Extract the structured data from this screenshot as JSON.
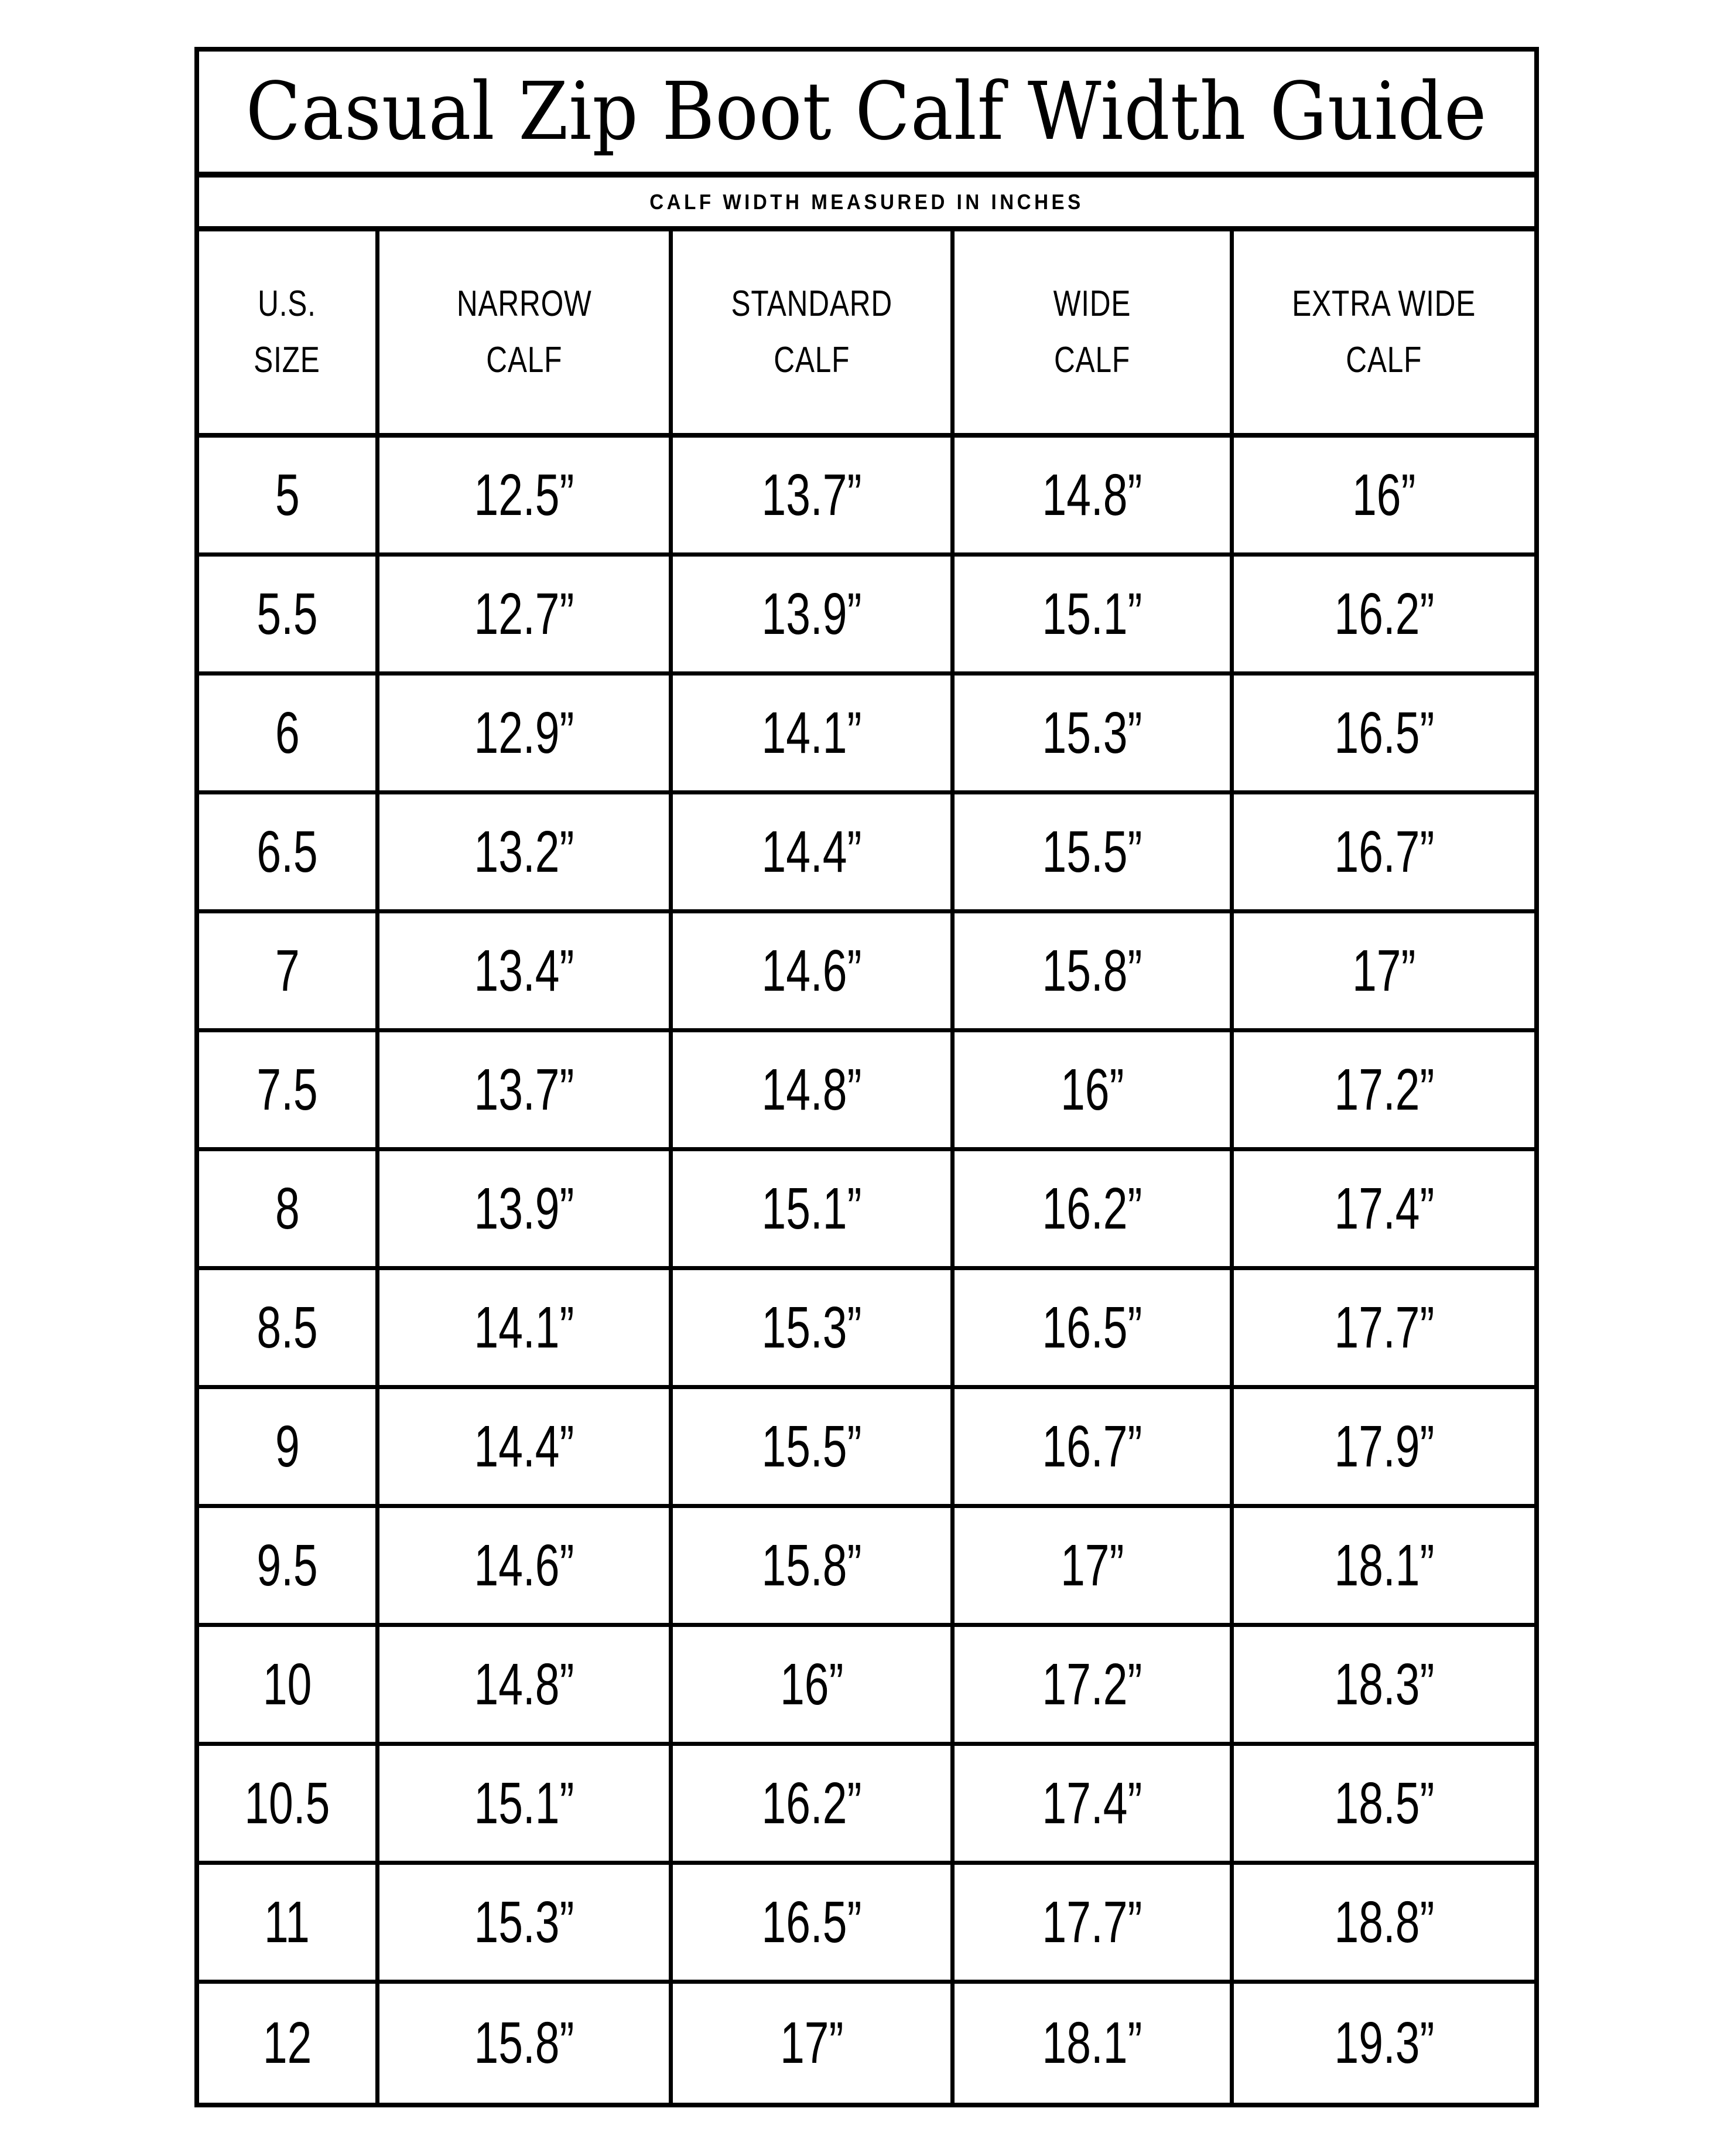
{
  "title": "Casual Zip Boot Calf Width Guide",
  "subtitle": "CALF WIDTH MEASURED IN INCHES",
  "colors": {
    "background": "#ffffff",
    "border": "#000000",
    "text": "#000000"
  },
  "table": {
    "columns": [
      {
        "label": "U.S. SIZE",
        "lines": [
          "U.S.",
          "SIZE"
        ]
      },
      {
        "label": "NARROW CALF",
        "lines": [
          "NARROW",
          "CALF"
        ]
      },
      {
        "label": "STANDARD CALF",
        "lines": [
          "STANDARD",
          "CALF"
        ]
      },
      {
        "label": "WIDE CALF",
        "lines": [
          "WIDE",
          "CALF"
        ]
      },
      {
        "label": "EXTRA WIDE CALF",
        "lines": [
          "EXTRA WIDE",
          "CALF"
        ]
      }
    ],
    "rows": [
      [
        "5",
        "12.5”",
        "13.7”",
        "14.8”",
        "16”"
      ],
      [
        "5.5",
        "12.7”",
        "13.9”",
        "15.1”",
        "16.2”"
      ],
      [
        "6",
        "12.9”",
        "14.1”",
        "15.3”",
        "16.5”"
      ],
      [
        "6.5",
        "13.2”",
        "14.4”",
        "15.5”",
        "16.7”"
      ],
      [
        "7",
        "13.4”",
        "14.6”",
        "15.8”",
        "17”"
      ],
      [
        "7.5",
        "13.7”",
        "14.8”",
        "16”",
        "17.2”"
      ],
      [
        "8",
        "13.9”",
        "15.1”",
        "16.2”",
        "17.4”"
      ],
      [
        "8.5",
        "14.1”",
        "15.3”",
        "16.5”",
        "17.7”"
      ],
      [
        "9",
        "14.4”",
        "15.5”",
        "16.7”",
        "17.9”"
      ],
      [
        "9.5",
        "14.6”",
        "15.8”",
        "17”",
        "18.1”"
      ],
      [
        "10",
        "14.8”",
        "16”",
        "17.2”",
        "18.3”"
      ],
      [
        "10.5",
        "15.1”",
        "16.2”",
        "17.4”",
        "18.5”"
      ],
      [
        "11",
        "15.3”",
        "16.5”",
        "17.7”",
        "18.8”"
      ],
      [
        "12",
        "15.8”",
        "17”",
        "18.1”",
        "19.3”"
      ]
    ]
  }
}
